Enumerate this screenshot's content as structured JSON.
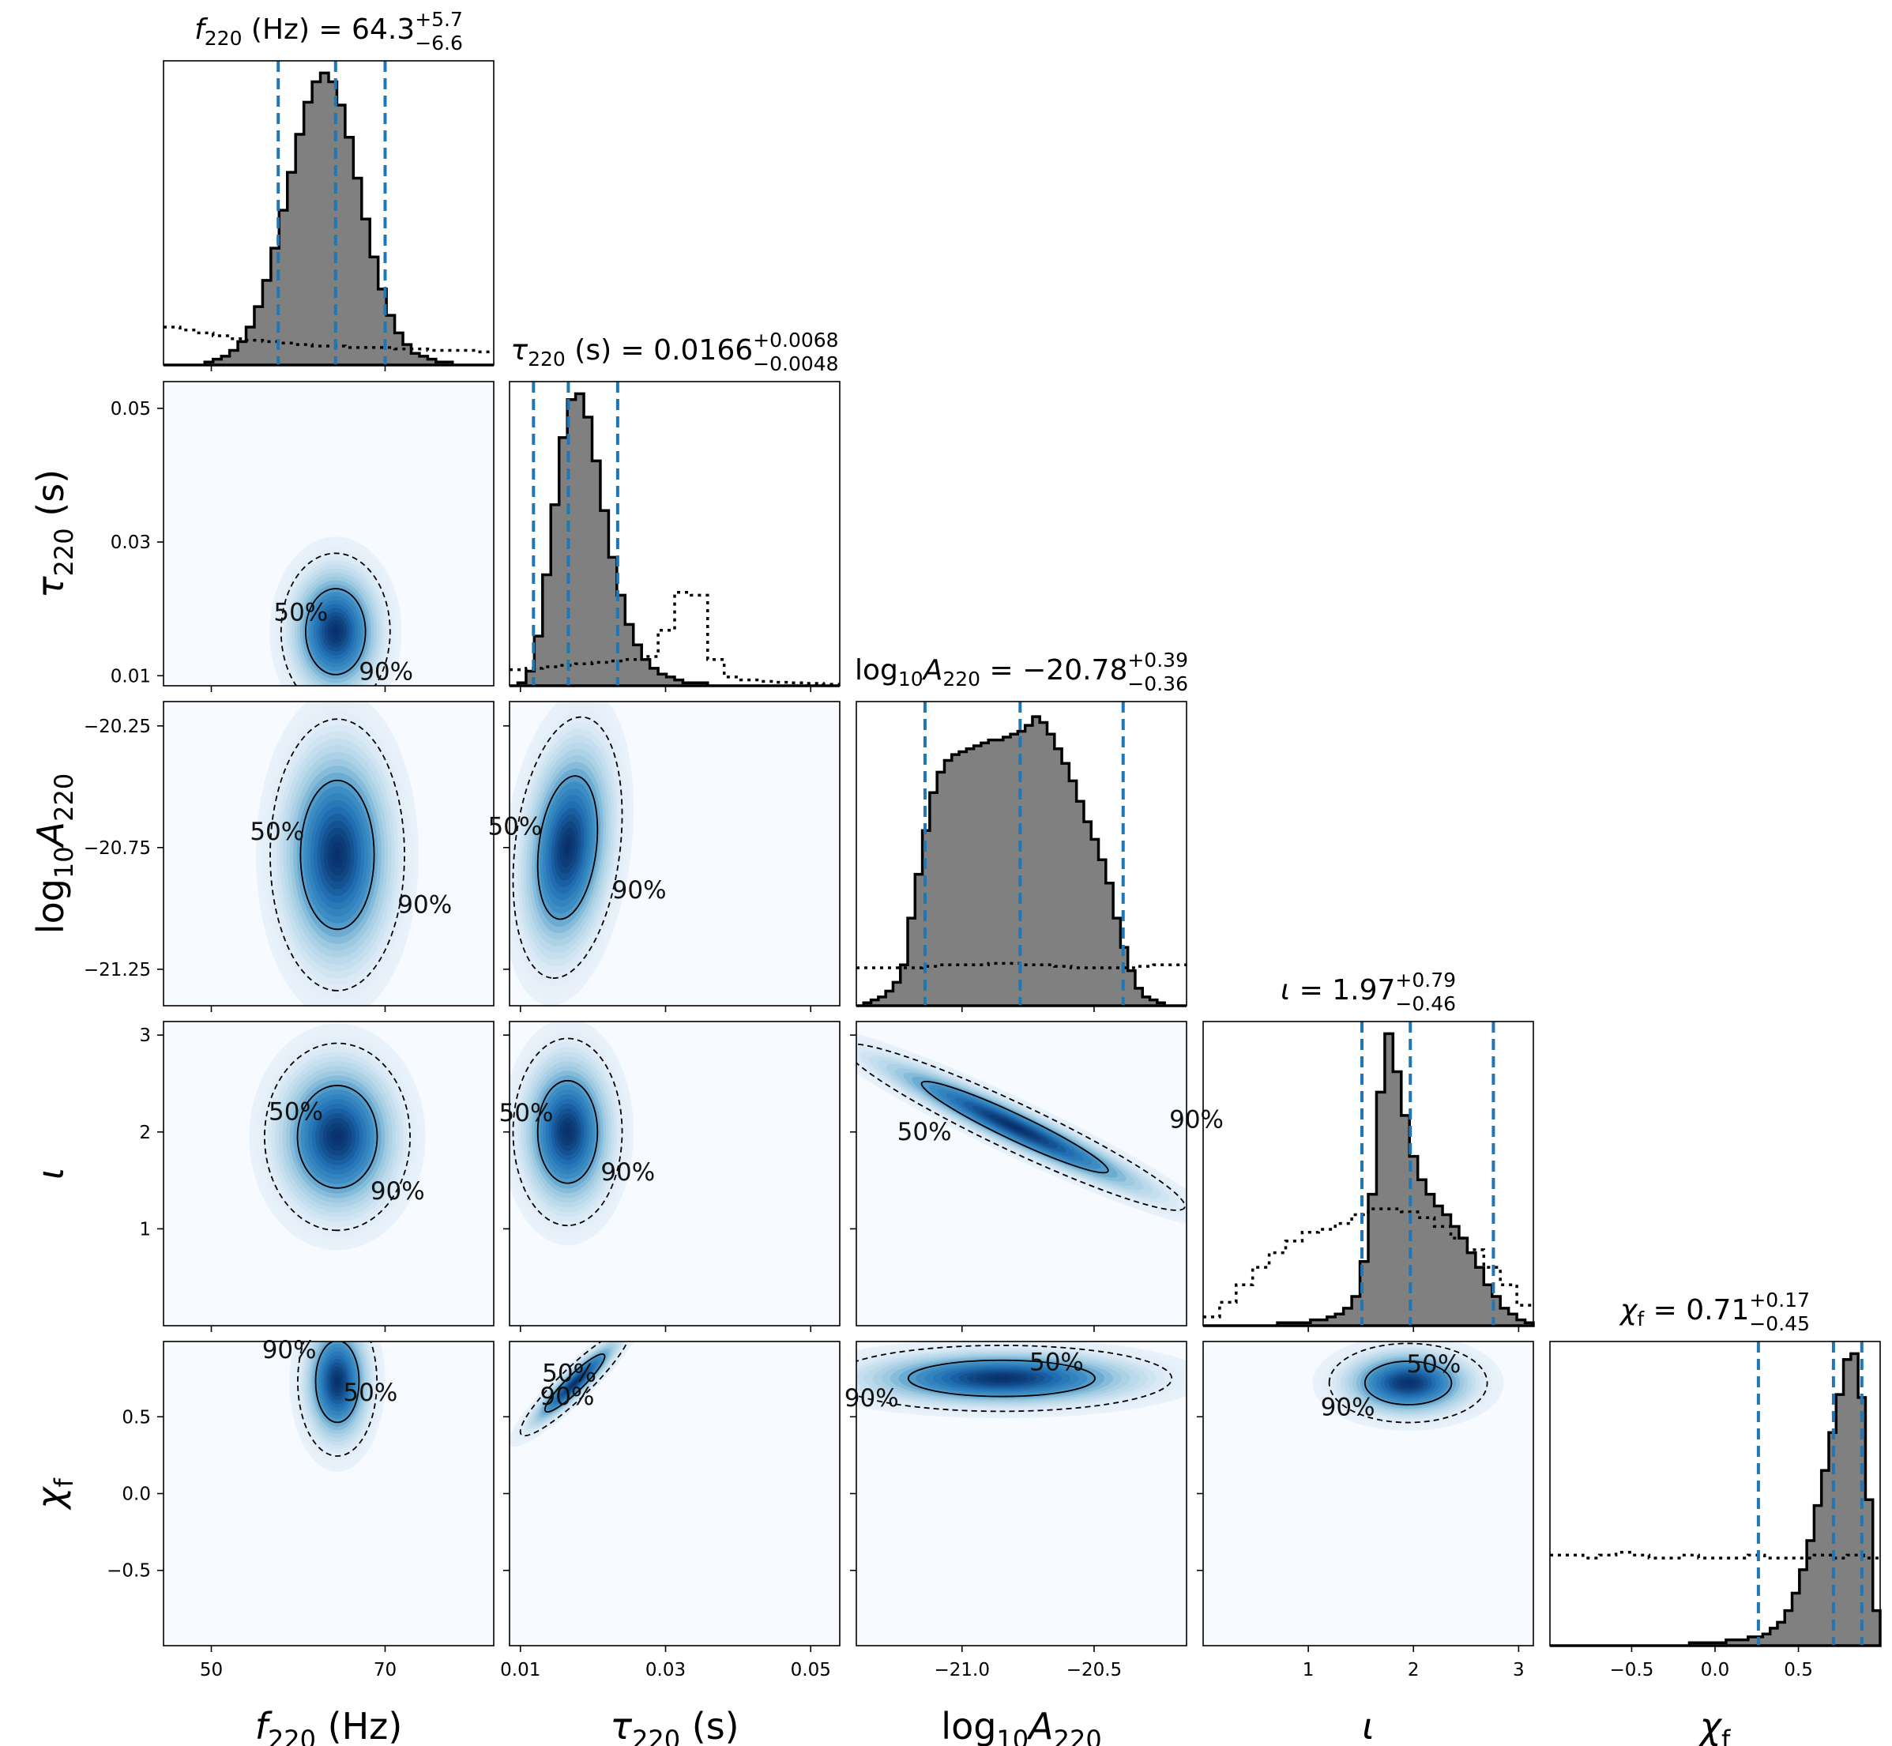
{
  "chart_data": {
    "type": "corner",
    "parameters": [
      {
        "key": "f220",
        "label_main": "f",
        "label_sub": "220",
        "label_suffix": " (Hz)",
        "title": {
          "sym": "f",
          "sub": "220",
          "unit": " (Hz)",
          "value": "64.3",
          "plus": "+5.7",
          "minus": "−6.6"
        },
        "range": [
          44.5,
          82.5
        ],
        "ticks": [
          50,
          70
        ],
        "tick_labels": [
          "50",
          "70"
        ],
        "median": 64.3,
        "lower": 57.7,
        "upper": 70.0
      },
      {
        "key": "tau220",
        "label_main": "τ",
        "label_sub": "220",
        "label_suffix": " (s)",
        "title": {
          "sym": "τ",
          "sub": "220",
          "unit": " (s)",
          "value": "0.0166",
          "plus": "+0.0068",
          "minus": "−0.0048"
        },
        "range": [
          0.0085,
          0.054
        ],
        "ticks": [
          0.01,
          0.03,
          0.05
        ],
        "tick_labels": [
          "0.01",
          "0.03",
          "0.05"
        ],
        "median": 0.0166,
        "lower": 0.0118,
        "upper": 0.0234
      },
      {
        "key": "logA220",
        "label_main": "log",
        "label_sub": "10",
        "label_suffix": "A",
        "label_sub2": "220",
        "title": {
          "sym": "log",
          "sub": "10",
          "sym2": "A",
          "sub2": "220",
          "unit": "",
          "value": "−20.78",
          "plus": "+0.39",
          "minus": "−0.36"
        },
        "range": [
          -21.4,
          -20.15
        ],
        "ticks": [
          -21.0,
          -20.5
        ],
        "tick_labels": [
          "−21.0",
          "−20.5"
        ],
        "ytick_vals": [
          -20.25,
          -20.75,
          -21.25
        ],
        "ytick_labels": [
          "−20.25",
          "−20.75",
          "−21.25"
        ],
        "median": -20.78,
        "lower": -21.14,
        "upper": -20.39
      },
      {
        "key": "iota",
        "label_main": "ι",
        "label_sub": "",
        "label_suffix": "",
        "title": {
          "sym": "ι",
          "sub": "",
          "unit": "",
          "value": "1.97",
          "plus": "+0.79",
          "minus": "−0.46"
        },
        "range": [
          0.0,
          3.14
        ],
        "ticks": [
          1,
          2,
          3
        ],
        "tick_labels": [
          "1",
          "2",
          "3"
        ],
        "median": 1.97,
        "lower": 1.51,
        "upper": 2.76
      },
      {
        "key": "chif",
        "label_main": "χ",
        "label_sub": "f",
        "label_suffix": "",
        "title": {
          "sym": "χ",
          "sub": "f",
          "unit": "",
          "value": "0.71",
          "plus": "+0.17",
          "minus": "−0.45"
        },
        "range": [
          -0.99,
          0.99
        ],
        "ticks": [
          -0.5,
          0.0,
          0.5
        ],
        "tick_labels": [
          "−0.5",
          "0.0",
          "0.5"
        ],
        "median": 0.71,
        "lower": 0.26,
        "upper": 0.88
      }
    ],
    "histograms": {
      "f220": [
        0,
        0,
        0,
        0,
        0,
        0.01,
        0.02,
        0.03,
        0.05,
        0.08,
        0.13,
        0.2,
        0.29,
        0.4,
        0.53,
        0.66,
        0.79,
        0.9,
        0.97,
        1.0,
        0.97,
        0.89,
        0.78,
        0.64,
        0.5,
        0.37,
        0.26,
        0.17,
        0.11,
        0.07,
        0.04,
        0.03,
        0.02,
        0.01,
        0.01,
        0,
        0,
        0,
        0,
        0
      ],
      "tau220": [
        0,
        0.01,
        0.05,
        0.17,
        0.38,
        0.62,
        0.85,
        0.98,
        1.0,
        0.92,
        0.77,
        0.6,
        0.44,
        0.31,
        0.21,
        0.14,
        0.09,
        0.06,
        0.04,
        0.03,
        0.02,
        0.01,
        0.01,
        0.01,
        0,
        0,
        0,
        0,
        0,
        0,
        0,
        0,
        0,
        0,
        0,
        0,
        0,
        0,
        0,
        0
      ],
      "logA220": [
        0,
        0.01,
        0.02,
        0.03,
        0.05,
        0.08,
        0.14,
        0.3,
        0.45,
        0.6,
        0.73,
        0.8,
        0.84,
        0.86,
        0.87,
        0.88,
        0.89,
        0.9,
        0.91,
        0.91,
        0.92,
        0.93,
        0.94,
        0.96,
        0.99,
        0.97,
        0.93,
        0.88,
        0.83,
        0.77,
        0.7,
        0.63,
        0.57,
        0.5,
        0.42,
        0.3,
        0.2,
        0.12,
        0.06,
        0.03,
        0.02,
        0.01,
        0,
        0,
        0
      ],
      "iota": [
        0,
        0,
        0,
        0,
        0,
        0,
        0,
        0,
        0,
        0.01,
        0.01,
        0.01,
        0.01,
        0.02,
        0.02,
        0.03,
        0.04,
        0.06,
        0.1,
        0.22,
        0.45,
        0.8,
        1.0,
        0.87,
        0.72,
        0.58,
        0.5,
        0.45,
        0.41,
        0.38,
        0.34,
        0.3,
        0.25,
        0.2,
        0.14,
        0.1,
        0.06,
        0.04,
        0.02,
        0.01
      ],
      "chif": [
        0,
        0,
        0,
        0,
        0,
        0,
        0,
        0,
        0,
        0,
        0,
        0,
        0,
        0,
        0,
        0,
        0,
        0,
        0,
        0.01,
        0.01,
        0.01,
        0.01,
        0.01,
        0.02,
        0.02,
        0.02,
        0.03,
        0.03,
        0.04,
        0.06,
        0.08,
        0.12,
        0.18,
        0.26,
        0.36,
        0.48,
        0.6,
        0.73,
        0.86,
        0.98,
        1.0,
        0.85,
        0.5,
        0.12
      ]
    },
    "priors": {
      "f220": [
        0.13,
        0.12,
        0.11,
        0.1,
        0.09,
        0.085,
        0.08,
        0.075,
        0.07,
        0.065,
        0.065,
        0.06,
        0.06,
        0.06,
        0.055,
        0.055,
        0.05,
        0.05,
        0.05,
        0.045
      ],
      "tau220": [
        0.055,
        0.06,
        0.065,
        0.07,
        0.075,
        0.08,
        0.085,
        0.09,
        0.1,
        0.19,
        0.32,
        0.31,
        0.09,
        0.03,
        0.02,
        0.015,
        0.012,
        0.01,
        0.008,
        0.005
      ],
      "logA220": [
        0.13,
        0.13,
        0.13,
        0.13,
        0.135,
        0.14,
        0.14,
        0.14,
        0.145,
        0.145,
        0.14,
        0.14,
        0.135,
        0.13,
        0.13,
        0.13,
        0.13,
        0.135,
        0.14,
        0.14
      ],
      "iota": [
        0.03,
        0.08,
        0.14,
        0.2,
        0.25,
        0.29,
        0.32,
        0.33,
        0.35,
        0.38,
        0.4,
        0.4,
        0.39,
        0.37,
        0.34,
        0.3,
        0.26,
        0.2,
        0.14,
        0.07
      ],
      "chif": [
        0.31,
        0.31,
        0.3,
        0.31,
        0.32,
        0.31,
        0.3,
        0.3,
        0.31,
        0.3,
        0.3,
        0.3,
        0.31,
        0.3,
        0.3,
        0.3,
        0.31,
        0.3,
        0.31,
        0.3
      ]
    },
    "density_2d": [
      {
        "x": "f220",
        "y": "tau220",
        "cx": 64.3,
        "cy": 0.0166,
        "sx": 4.2,
        "sy": 0.0038,
        "rho": 0.0
      },
      {
        "x": "f220",
        "y": "logA220",
        "cx": 64.5,
        "cy": -20.78,
        "sx": 3.6,
        "sy": 0.26,
        "rho": 0.0
      },
      {
        "x": "tau220",
        "y": "logA220",
        "cx": 0.0165,
        "cy": -20.75,
        "sx": 0.0035,
        "sy": 0.25,
        "rho": 0.25
      },
      {
        "x": "f220",
        "y": "iota",
        "cx": 64.5,
        "cy": 1.95,
        "sx": 3.9,
        "sy": 0.45,
        "rho": 0.0
      },
      {
        "x": "tau220",
        "y": "iota",
        "cx": 0.0165,
        "cy": 2.0,
        "sx": 0.0035,
        "sy": 0.45,
        "rho": 0.0
      },
      {
        "x": "logA220",
        "y": "iota",
        "cx": -20.8,
        "cy": 2.05,
        "sx": 0.3,
        "sy": 0.4,
        "rho": -0.95
      },
      {
        "x": "f220",
        "y": "chif",
        "cx": 64.5,
        "cy": 0.73,
        "sx": 4.0,
        "sy": 0.12,
        "rho": 0.0
      },
      {
        "x": "tau220",
        "y": "chif",
        "cx": 0.0175,
        "cy": 0.72,
        "sx": 0.0035,
        "sy": 0.16,
        "rho": 0.92
      },
      {
        "x": "logA220",
        "y": "chif",
        "cx": -20.85,
        "cy": 0.75,
        "sx": 0.3,
        "sy": 0.1,
        "rho": 0.0
      },
      {
        "x": "iota",
        "y": "chif",
        "cx": 1.95,
        "cy": 0.72,
        "sx": 0.35,
        "sy": 0.12,
        "rho": 0.0
      }
    ],
    "contour_levels": [
      "50%",
      "90%"
    ],
    "colors": {
      "hist_fill": "#808080",
      "hist_edge": "#000000",
      "median_lines": "#1f77b4",
      "density_low": "#f7fbff",
      "density_high": "#08306b"
    }
  }
}
